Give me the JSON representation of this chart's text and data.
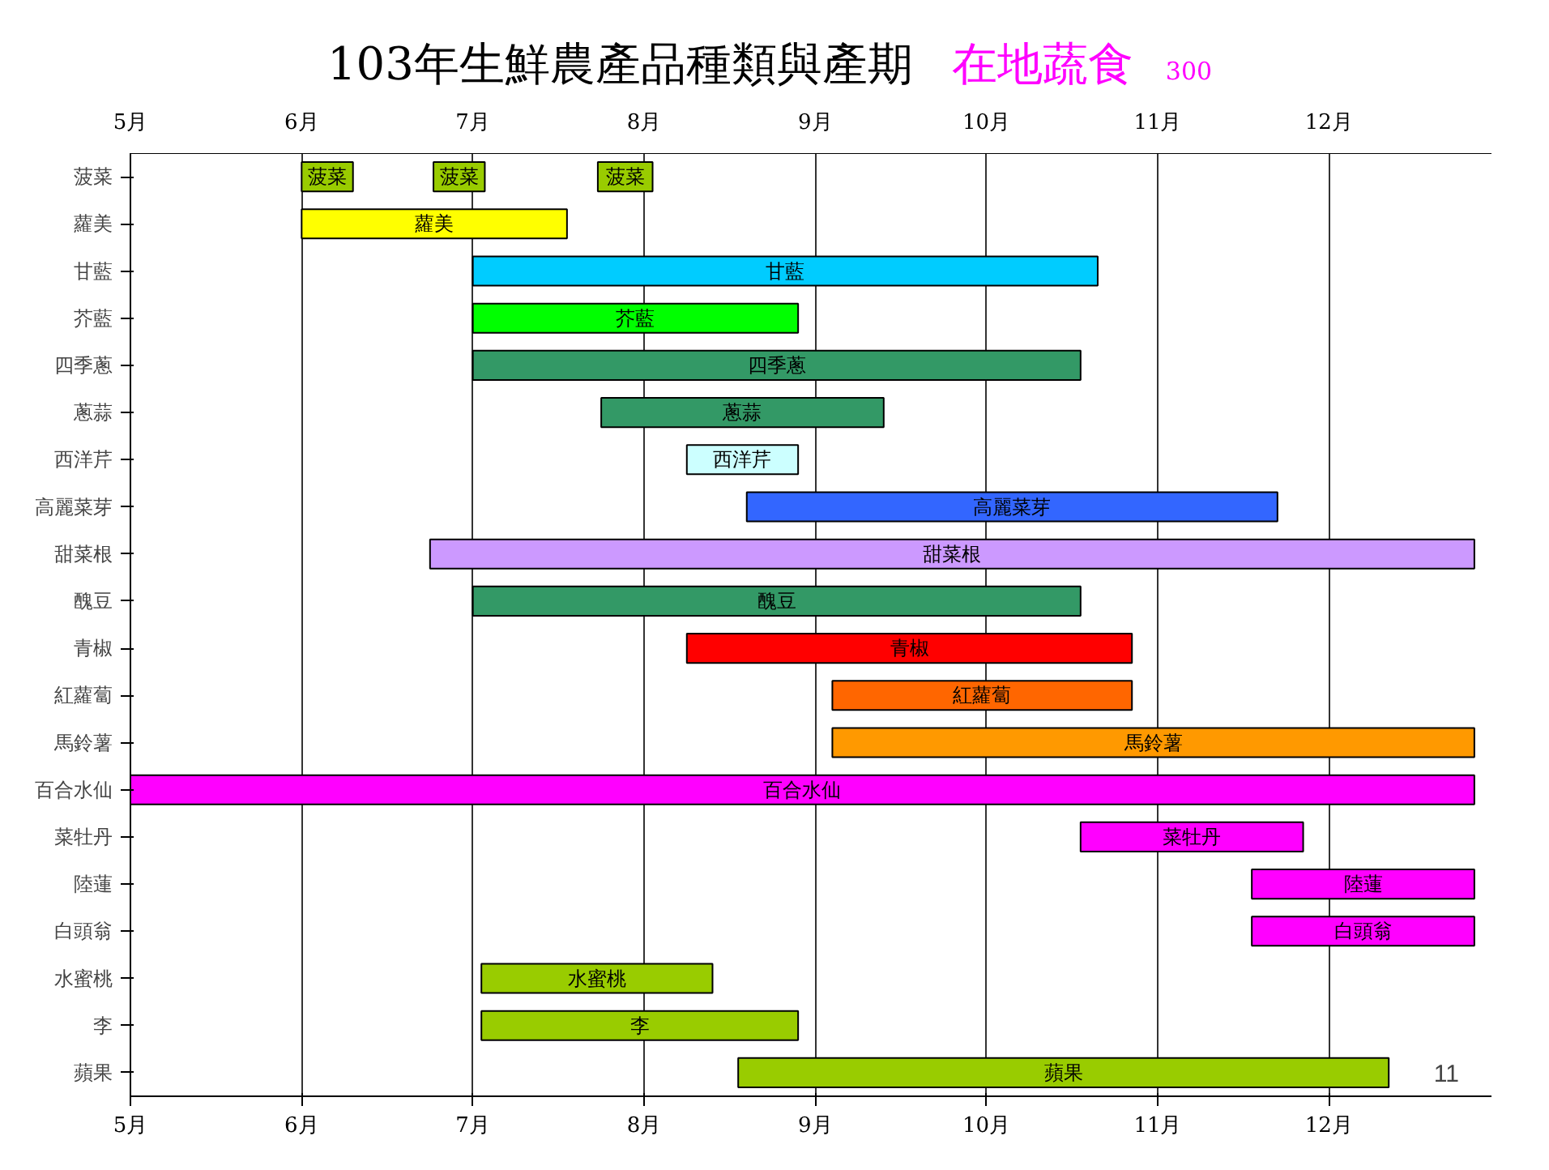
{
  "chart_data": {
    "type": "bar",
    "orientation": "horizontal",
    "title": "103年生鮮農產品種類與產期",
    "annotations": [
      "在地蔬食",
      "300",
      "11"
    ],
    "categories": [
      "菠菜",
      "蘿美",
      "甘藍",
      "芥藍",
      "四季蔥",
      "蔥蒜",
      "西洋芹",
      "高麗菜芽",
      "甜菜根",
      "醜豆",
      "青椒",
      "紅蘿蔔",
      "馬鈴薯",
      "百合水仙",
      "菜牡丹",
      "陸蓮",
      "白頭翁",
      "水蜜桃",
      "李",
      "蘋果"
    ],
    "series": [
      {
        "base": [
          6.0,
          6.0,
          7.0,
          7.0,
          7.0,
          7.75,
          8.25,
          8.6,
          6.75,
          7.0,
          8.25,
          9.1,
          9.1,
          5.0,
          10.55,
          11.55,
          11.55,
          7.05,
          7.05,
          8.55
        ],
        "values": [
          0.3,
          1.55,
          3.65,
          1.9,
          3.55,
          1.65,
          0.65,
          3.1,
          6.1,
          3.55,
          2.6,
          1.75,
          3.75,
          7.85,
          1.3,
          1.3,
          1.3,
          1.35,
          1.85,
          3.8
        ],
        "colors": [
          "#99cc00",
          "#ffff00",
          "#00ccff",
          "#00ff00",
          "#339966",
          "#339966",
          "#ccffff",
          "#3366ff",
          "#cc99ff",
          "#339966",
          "#ff0000",
          "#ff6600",
          "#ff9900",
          "#ff00ff",
          "#ff00ff",
          "#ff00ff",
          "#ff00ff",
          "#99cc00",
          "#99cc00",
          "#99cc00"
        ],
        "value_labels": [
          "菠菜",
          "蘿美",
          "甘藍",
          "芥藍",
          "四季蔥",
          "蔥蒜",
          "西洋芹",
          "高麗菜芽",
          "甜菜根",
          "醜豆",
          "青椒",
          "紅蘿蔔",
          "馬鈴薯",
          "百合水仙",
          "菜牡丹",
          "陸蓮",
          "白頭翁",
          "水蜜桃",
          "李",
          "蘋果"
        ]
      },
      {
        "base": [
          6.77,
          null,
          null,
          null,
          null,
          null,
          null,
          null,
          null,
          null,
          null,
          null,
          null,
          null,
          null,
          null,
          null,
          null,
          null,
          null
        ],
        "values": [
          0.3,
          null,
          null,
          null,
          null,
          null,
          null,
          null,
          null,
          null,
          null,
          null,
          null,
          null,
          null,
          null,
          null,
          null,
          null,
          null
        ],
        "colors": [
          "#99cc00",
          null,
          null,
          null,
          null,
          null,
          null,
          null,
          null,
          null,
          null,
          null,
          null,
          null,
          null,
          null,
          null,
          null,
          null,
          null
        ],
        "value_labels": [
          "菠菜",
          null,
          null,
          null,
          null,
          null,
          null,
          null,
          null,
          null,
          null,
          null,
          null,
          null,
          null,
          null,
          null,
          null,
          null,
          null
        ]
      },
      {
        "base": [
          7.73,
          null,
          null,
          null,
          null,
          null,
          null,
          null,
          null,
          null,
          null,
          null,
          null,
          null,
          null,
          null,
          null,
          null,
          null,
          null
        ],
        "values": [
          0.32,
          null,
          null,
          null,
          null,
          null,
          null,
          null,
          null,
          null,
          null,
          null,
          null,
          null,
          null,
          null,
          null,
          null,
          null,
          null
        ],
        "colors": [
          "#99cc00",
          null,
          null,
          null,
          null,
          null,
          null,
          null,
          null,
          null,
          null,
          null,
          null,
          null,
          null,
          null,
          null,
          null,
          null,
          null
        ],
        "value_labels": [
          "菠菜",
          null,
          null,
          null,
          null,
          null,
          null,
          null,
          null,
          null,
          null,
          null,
          null,
          null,
          null,
          null,
          null,
          null,
          null,
          null
        ]
      }
    ],
    "xlim": [
      5,
      12.95
    ],
    "xticks": [
      {
        "value": 5,
        "label": "5月"
      },
      {
        "value": 6,
        "label": "6月"
      },
      {
        "value": 7,
        "label": "7月"
      },
      {
        "value": 8,
        "label": "8月"
      },
      {
        "value": 9,
        "label": "9月"
      },
      {
        "value": 10,
        "label": "10月"
      },
      {
        "value": 11,
        "label": "11月"
      },
      {
        "value": 12,
        "label": "12月"
      }
    ],
    "x2lim": [
      5,
      12.95
    ],
    "x2ticks": [
      {
        "value": 5,
        "label": "5月"
      },
      {
        "value": 6,
        "label": "6月"
      },
      {
        "value": 7,
        "label": "7月"
      },
      {
        "value": 8,
        "label": "8月"
      },
      {
        "value": 9,
        "label": "9月"
      },
      {
        "value": 10,
        "label": "10月"
      },
      {
        "value": 11,
        "label": "11月"
      },
      {
        "value": 12,
        "label": "12月"
      }
    ],
    "grid": "x"
  }
}
